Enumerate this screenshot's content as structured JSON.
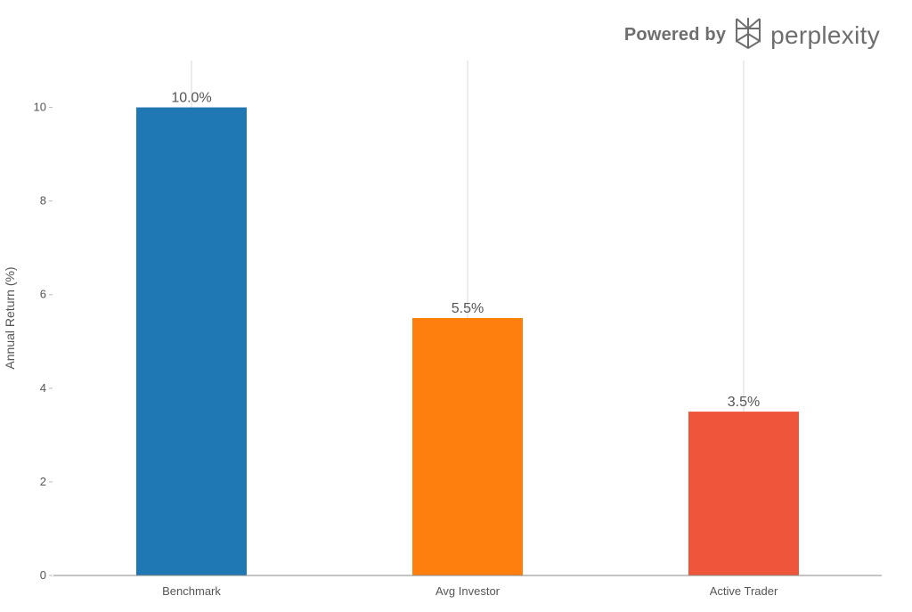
{
  "watermark": {
    "prefix": "Powered by",
    "brand": "perplexity",
    "icon": "perplexity-logo-icon"
  },
  "chart_data": {
    "type": "bar",
    "title": "",
    "xlabel": "",
    "ylabel": "Annual Return (%)",
    "categories": [
      "Benchmark",
      "Avg Investor",
      "Active Trader"
    ],
    "values": [
      10.0,
      5.5,
      3.5
    ],
    "data_labels": [
      "10.0%",
      "5.5%",
      "3.5%"
    ],
    "colors": [
      "#1f77b4",
      "#ff7f0e",
      "#ee553b"
    ],
    "ylim": [
      0,
      11
    ],
    "yticks": [
      0,
      2,
      4,
      6,
      8,
      10
    ],
    "ytick_labels": [
      "0",
      "2",
      "4",
      "6",
      "8",
      "10"
    ],
    "grid": "vertical",
    "legend": "none"
  }
}
